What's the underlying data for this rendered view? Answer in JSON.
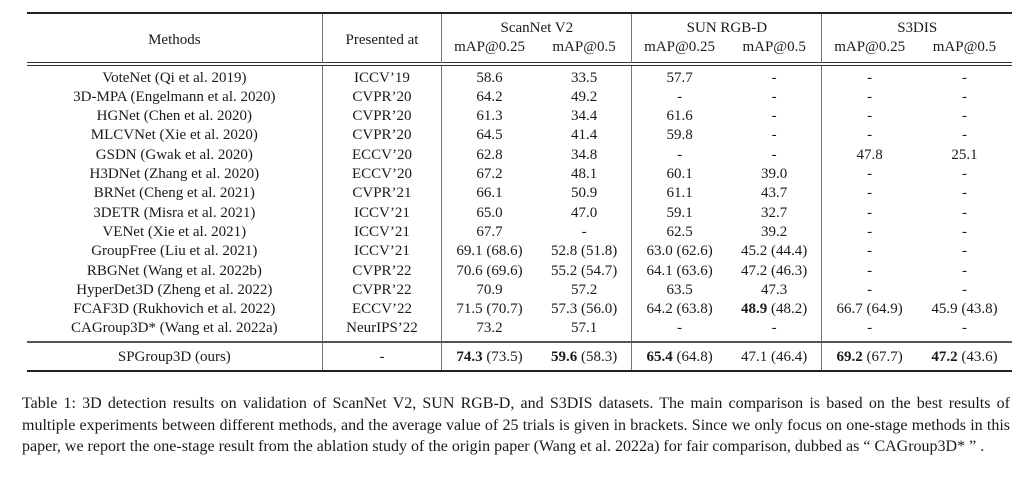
{
  "table": {
    "headers": {
      "methods": "Methods",
      "presented_at": "Presented at",
      "groups": [
        "ScanNet V2",
        "SUN RGB-D",
        "S3DIS"
      ],
      "metrics": [
        "mAP@0.25",
        "mAP@0.5",
        "mAP@0.25",
        "mAP@0.5",
        "mAP@0.25",
        "mAP@0.5"
      ]
    },
    "rows": [
      {
        "method": "VoteNet (Qi et al. 2019)",
        "venue": "ICCV’19",
        "cells": [
          {
            "v": "58.6",
            "a": ""
          },
          {
            "v": "33.5",
            "a": ""
          },
          {
            "v": "57.7",
            "a": ""
          },
          {
            "v": "-",
            "a": ""
          },
          {
            "v": "-",
            "a": ""
          },
          {
            "v": "-",
            "a": ""
          }
        ]
      },
      {
        "method": "3D-MPA (Engelmann et al. 2020)",
        "venue": "CVPR’20",
        "cells": [
          {
            "v": "64.2",
            "a": ""
          },
          {
            "v": "49.2",
            "a": ""
          },
          {
            "v": "-",
            "a": ""
          },
          {
            "v": "-",
            "a": ""
          },
          {
            "v": "-",
            "a": ""
          },
          {
            "v": "-",
            "a": ""
          }
        ]
      },
      {
        "method": "HGNet (Chen et al. 2020)",
        "venue": "CVPR’20",
        "cells": [
          {
            "v": "61.3",
            "a": ""
          },
          {
            "v": "34.4",
            "a": ""
          },
          {
            "v": "61.6",
            "a": ""
          },
          {
            "v": "-",
            "a": ""
          },
          {
            "v": "-",
            "a": ""
          },
          {
            "v": "-",
            "a": ""
          }
        ]
      },
      {
        "method": "MLCVNet (Xie et al. 2020)",
        "venue": "CVPR’20",
        "cells": [
          {
            "v": "64.5",
            "a": ""
          },
          {
            "v": "41.4",
            "a": ""
          },
          {
            "v": "59.8",
            "a": ""
          },
          {
            "v": "-",
            "a": ""
          },
          {
            "v": "-",
            "a": ""
          },
          {
            "v": "-",
            "a": ""
          }
        ]
      },
      {
        "method": "GSDN (Gwak et al. 2020)",
        "venue": "ECCV’20",
        "cells": [
          {
            "v": "62.8",
            "a": ""
          },
          {
            "v": "34.8",
            "a": ""
          },
          {
            "v": "-",
            "a": ""
          },
          {
            "v": "-",
            "a": ""
          },
          {
            "v": "47.8",
            "a": ""
          },
          {
            "v": "25.1",
            "a": ""
          }
        ]
      },
      {
        "method": "H3DNet (Zhang et al. 2020)",
        "venue": "ECCV’20",
        "cells": [
          {
            "v": "67.2",
            "a": ""
          },
          {
            "v": "48.1",
            "a": ""
          },
          {
            "v": "60.1",
            "a": ""
          },
          {
            "v": "39.0",
            "a": ""
          },
          {
            "v": "-",
            "a": ""
          },
          {
            "v": "-",
            "a": ""
          }
        ]
      },
      {
        "method": "BRNet (Cheng et al. 2021)",
        "venue": "CVPR’21",
        "cells": [
          {
            "v": "66.1",
            "a": ""
          },
          {
            "v": "50.9",
            "a": ""
          },
          {
            "v": "61.1",
            "a": ""
          },
          {
            "v": "43.7",
            "a": ""
          },
          {
            "v": "-",
            "a": ""
          },
          {
            "v": "-",
            "a": ""
          }
        ]
      },
      {
        "method": "3DETR (Misra et al. 2021)",
        "venue": "ICCV’21",
        "cells": [
          {
            "v": "65.0",
            "a": ""
          },
          {
            "v": "47.0",
            "a": ""
          },
          {
            "v": "59.1",
            "a": ""
          },
          {
            "v": "32.7",
            "a": ""
          },
          {
            "v": "-",
            "a": ""
          },
          {
            "v": "-",
            "a": ""
          }
        ]
      },
      {
        "method": "VENet (Xie et al. 2021)",
        "venue": "ICCV’21",
        "cells": [
          {
            "v": "67.7",
            "a": ""
          },
          {
            "v": "-",
            "a": ""
          },
          {
            "v": "62.5",
            "a": ""
          },
          {
            "v": "39.2",
            "a": ""
          },
          {
            "v": "-",
            "a": ""
          },
          {
            "v": "-",
            "a": ""
          }
        ]
      },
      {
        "method": "GroupFree (Liu et al. 2021)",
        "venue": "ICCV’21",
        "cells": [
          {
            "v": "69.1",
            "a": " (68.6)"
          },
          {
            "v": "52.8",
            "a": " (51.8)"
          },
          {
            "v": "63.0",
            "a": " (62.6)"
          },
          {
            "v": "45.2",
            "a": " (44.4)"
          },
          {
            "v": "-",
            "a": ""
          },
          {
            "v": "-",
            "a": ""
          }
        ]
      },
      {
        "method": "RBGNet (Wang et al. 2022b)",
        "venue": "CVPR’22",
        "cells": [
          {
            "v": "70.6",
            "a": " (69.6)"
          },
          {
            "v": "55.2",
            "a": " (54.7)"
          },
          {
            "v": "64.1",
            "a": " (63.6)"
          },
          {
            "v": "47.2",
            "a": " (46.3)"
          },
          {
            "v": "-",
            "a": ""
          },
          {
            "v": "-",
            "a": ""
          }
        ]
      },
      {
        "method": "HyperDet3D (Zheng et al. 2022)",
        "venue": "CVPR’22",
        "cells": [
          {
            "v": "70.9",
            "a": ""
          },
          {
            "v": "57.2",
            "a": ""
          },
          {
            "v": "63.5",
            "a": ""
          },
          {
            "v": "47.3",
            "a": ""
          },
          {
            "v": "-",
            "a": ""
          },
          {
            "v": "-",
            "a": ""
          }
        ]
      },
      {
        "method": "FCAF3D (Rukhovich et al. 2022)",
        "venue": "ECCV’22",
        "cells": [
          {
            "v": "71.5",
            "a": " (70.7)"
          },
          {
            "v": "57.3",
            "a": " (56.0)"
          },
          {
            "v": "64.2",
            "a": " (63.8)"
          },
          {
            "v": "48.9",
            "a": " (48.2)",
            "bold": true
          },
          {
            "v": "66.7",
            "a": " (64.9)"
          },
          {
            "v": "45.9",
            "a": " (43.8)"
          }
        ]
      },
      {
        "method": "CAGroup3D* (Wang et al. 2022a)",
        "venue": "NeurIPS’22",
        "cells": [
          {
            "v": "73.2",
            "a": ""
          },
          {
            "v": "57.1",
            "a": ""
          },
          {
            "v": "-",
            "a": ""
          },
          {
            "v": "-",
            "a": ""
          },
          {
            "v": "-",
            "a": ""
          },
          {
            "v": "-",
            "a": ""
          }
        ]
      }
    ],
    "ours": {
      "method": "SPGroup3D (ours)",
      "venue": "-",
      "cells": [
        {
          "v": "74.3",
          "a": " (73.5)",
          "bold": true
        },
        {
          "v": "59.6",
          "a": " (58.3)",
          "bold": true
        },
        {
          "v": "65.4",
          "a": " (64.8)",
          "bold": true
        },
        {
          "v": "47.1",
          "a": " (46.4)"
        },
        {
          "v": "69.2",
          "a": " (67.7)",
          "bold": true
        },
        {
          "v": "47.2",
          "a": " (43.6)",
          "bold": true
        }
      ]
    }
  },
  "caption": "Table 1: 3D detection results on validation of ScanNet V2, SUN RGB-D, and S3DIS datasets. The main comparison is based on the best results of multiple experiments between different methods, and the average value of 25 trials is given in brackets. Since we only focus on one-stage methods in this paper, we report the one-stage result from the ablation study of the origin paper (Wang et al. 2022a) for fair comparison, dubbed as “ CAGroup3D* ” ."
}
